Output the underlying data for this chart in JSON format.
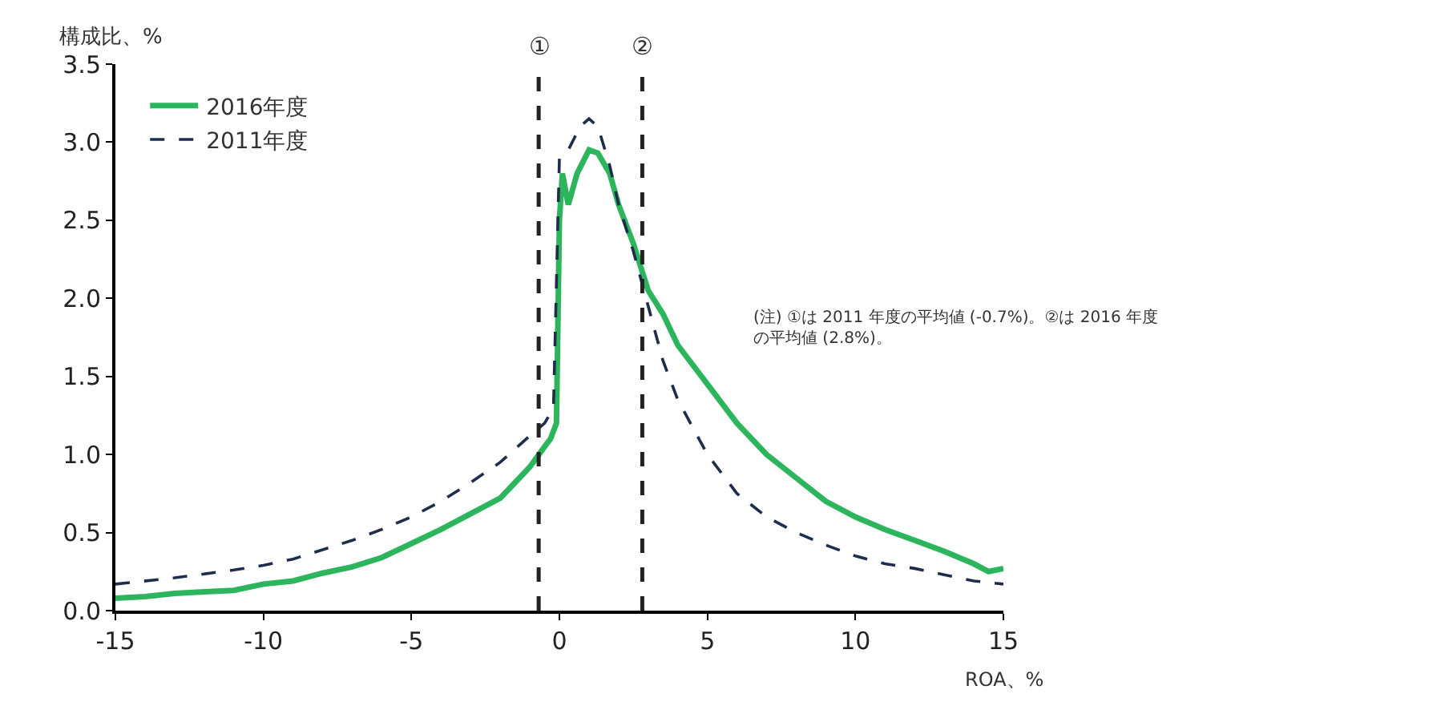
{
  "chart_data": {
    "type": "line",
    "xlabel": "ROA、%",
    "ylabel": "構成比、%",
    "xlim": [
      -15,
      15
    ],
    "xticks": [
      -15,
      -10,
      -5,
      0,
      5,
      10,
      15
    ],
    "ylim": [
      0,
      3.5
    ],
    "yticks": [
      {
        "value": 0,
        "label": "0.0"
      },
      0.5,
      {
        "value": 1,
        "label": "1.0"
      },
      1.5,
      {
        "value": 2,
        "label": "2.0"
      },
      2.5,
      {
        "value": 3,
        "label": "3.0"
      },
      3.5
    ],
    "legend": "top left",
    "series": [
      {
        "name": "2016年度",
        "color": "#2db55d",
        "line_style": "solid",
        "x": [
          -15,
          -14,
          -13,
          -12,
          -11,
          -10,
          -9,
          -8,
          -7,
          -6,
          -5,
          -4,
          -3,
          -2,
          -1.5,
          -1,
          -0.5,
          -0.3,
          -0.1,
          0,
          0.1,
          0.3,
          0.6,
          1,
          1.3,
          1.7,
          2,
          2.5,
          3,
          3.5,
          4,
          5,
          6,
          7,
          8,
          9,
          10,
          11,
          12,
          13,
          14,
          14.5,
          15
        ],
        "values": [
          0.08,
          0.09,
          0.11,
          0.12,
          0.13,
          0.17,
          0.19,
          0.24,
          0.28,
          0.34,
          0.43,
          0.52,
          0.62,
          0.72,
          0.82,
          0.92,
          1.05,
          1.1,
          1.2,
          2.5,
          2.8,
          2.6,
          2.8,
          2.95,
          2.93,
          2.8,
          2.6,
          2.35,
          2.05,
          1.9,
          1.7,
          1.45,
          1.2,
          1.0,
          0.85,
          0.7,
          0.6,
          0.52,
          0.45,
          0.38,
          0.3,
          0.25,
          0.27
        ]
      },
      {
        "name": "2011年度",
        "color": "#1f2d4d",
        "line_style": "dashed",
        "x": [
          -15,
          -13,
          -11,
          -10,
          -9,
          -8,
          -7,
          -6,
          -5,
          -4,
          -3,
          -2,
          -1,
          -0.5,
          -0.2,
          0,
          0.3,
          0.7,
          1,
          1.3,
          1.7,
          2,
          2.5,
          3,
          3.5,
          4,
          5,
          6,
          7,
          8,
          9,
          10,
          11,
          12,
          13,
          14,
          15
        ],
        "values": [
          0.17,
          0.21,
          0.26,
          0.29,
          0.33,
          0.39,
          0.45,
          0.52,
          0.6,
          0.7,
          0.82,
          0.95,
          1.12,
          1.2,
          1.3,
          2.9,
          2.95,
          3.1,
          3.15,
          3.1,
          2.85,
          2.6,
          2.3,
          1.95,
          1.6,
          1.35,
          1.0,
          0.75,
          0.6,
          0.5,
          0.42,
          0.35,
          0.3,
          0.27,
          0.23,
          0.19,
          0.17
        ]
      }
    ],
    "ref_lines": [
      {
        "axis": "x",
        "value": -0.7,
        "label": "①",
        "color": "#222222",
        "line_style": "dashed"
      },
      {
        "axis": "x",
        "value": 2.8,
        "label": "②",
        "color": "#222222",
        "line_style": "dashed"
      }
    ],
    "annotations": [
      "(注) ①は 2011 年度の平均値 (-0.7%)。②は 2016 年度の平均値 (2.8%)。"
    ]
  }
}
